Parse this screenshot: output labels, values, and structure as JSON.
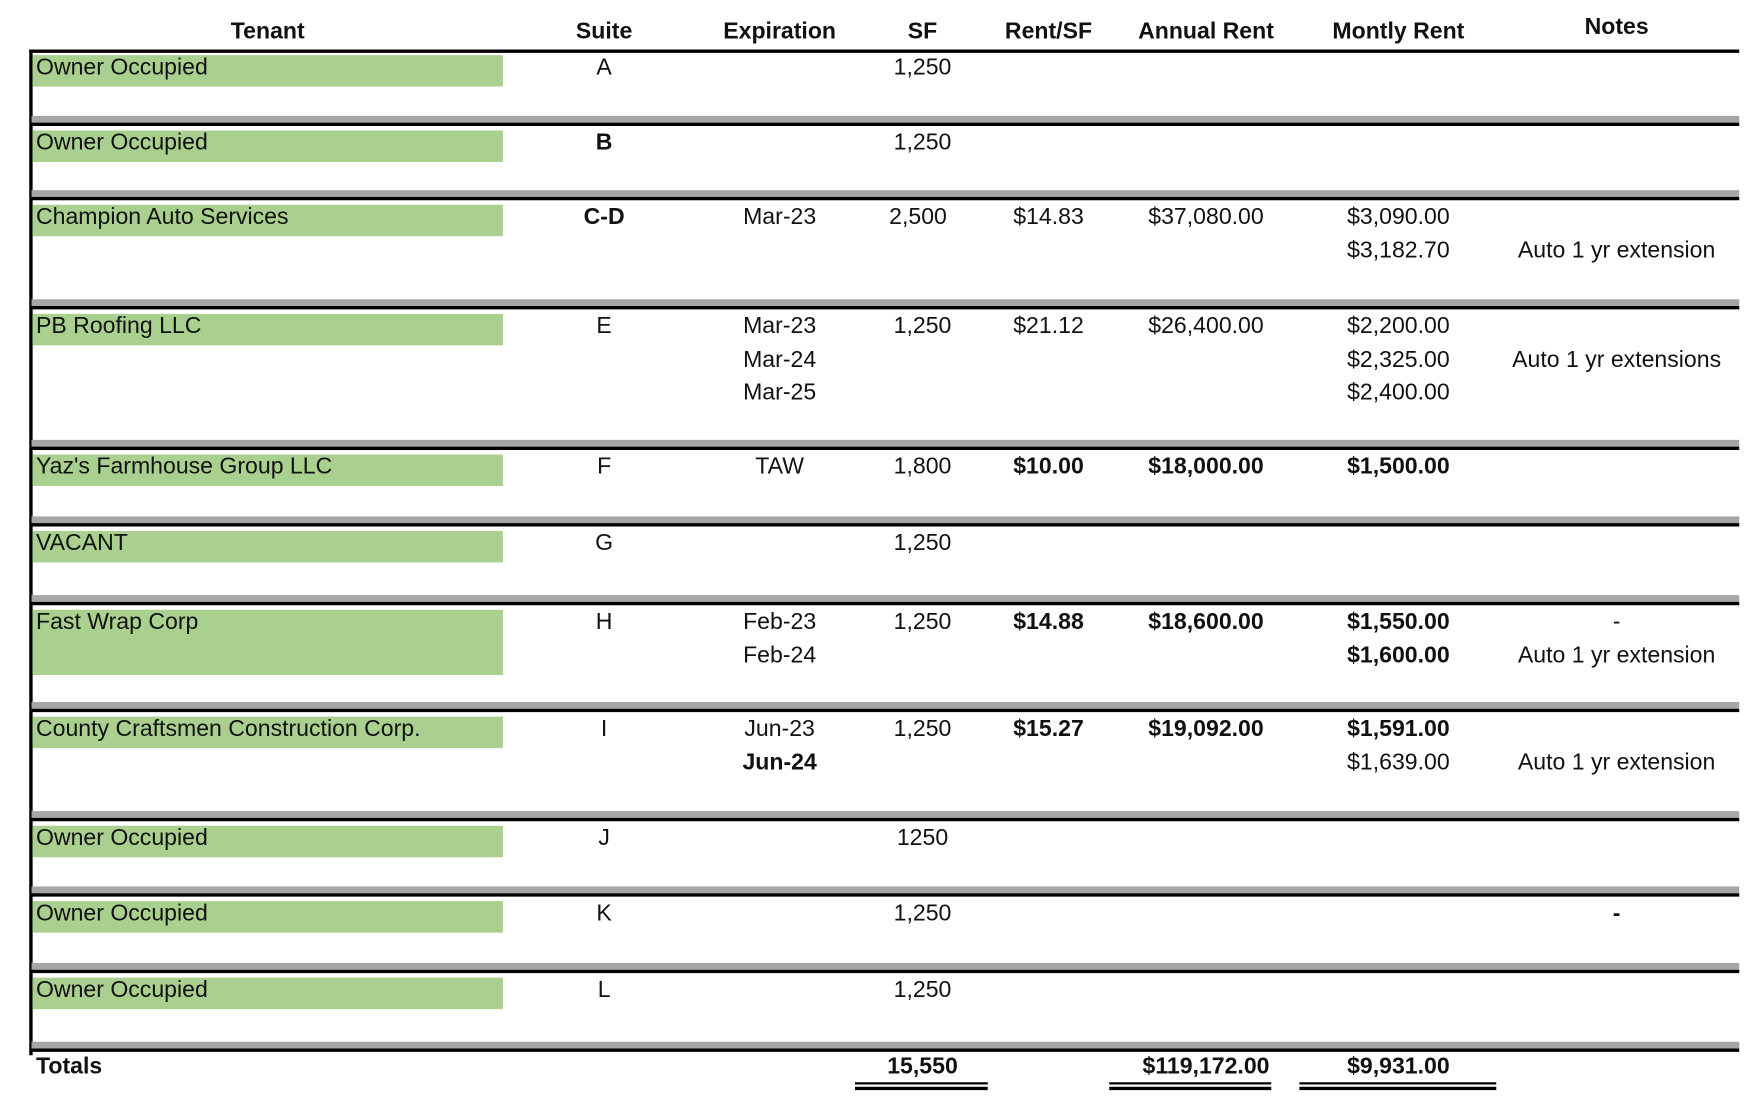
{
  "header": {
    "columns": [
      "Tenant",
      "Suite",
      "Expiration",
      "SF",
      "Rent/SF",
      "Annual Rent",
      "Montly Rent",
      "Notes"
    ]
  },
  "rows": [
    {
      "tenant": "Owner Occupied",
      "suite": "A",
      "sf": "1,250",
      "lines": []
    },
    {
      "tenant": "Owner Occupied",
      "suite": "B",
      "sf": "1,250",
      "lines": []
    },
    {
      "tenant": "Champion Auto Services",
      "suite": "C-D",
      "sf": "2,500",
      "rent_sf": "$14.83",
      "annual_rent": "$37,080.00",
      "lines": [
        {
          "expiration": "Mar-23",
          "monthly_rent": "$3,090.00"
        },
        {
          "monthly_rent": "$3,182.70",
          "notes": "Auto 1 yr extension"
        }
      ]
    },
    {
      "tenant": "PB Roofing LLC",
      "suite": "E",
      "sf": "1,250",
      "rent_sf": "$21.12",
      "annual_rent": "$26,400.00",
      "lines": [
        {
          "expiration": "Mar-23",
          "monthly_rent": "$2,200.00"
        },
        {
          "expiration": "Mar-24",
          "monthly_rent": "$2,325.00",
          "notes": "Auto 1 yr extensions"
        },
        {
          "expiration": "Mar-25",
          "monthly_rent": "$2,400.00"
        }
      ]
    },
    {
      "tenant": "Yaz's Farmhouse Group LLC",
      "suite": "F",
      "sf": "1,800",
      "rent_sf": "$10.00",
      "annual_rent": "$18,000.00",
      "lines": [
        {
          "expiration": "TAW",
          "monthly_rent": "$1,500.00"
        }
      ]
    },
    {
      "tenant": "VACANT",
      "suite": "G",
      "sf": "1,250",
      "lines": []
    },
    {
      "tenant": "Fast Wrap Corp",
      "suite": "H",
      "sf": "1,250",
      "rent_sf": "$14.88",
      "annual_rent": "$18,600.00",
      "lines": [
        {
          "expiration": "Feb-23",
          "monthly_rent": "$1,550.00",
          "notes": "-"
        },
        {
          "expiration": "Feb-24",
          "monthly_rent": "$1,600.00",
          "notes": "Auto 1 yr extension"
        }
      ]
    },
    {
      "tenant": "County Craftsmen Construction Corp.",
      "suite": "I",
      "sf": "1,250",
      "rent_sf": "$15.27",
      "annual_rent": "$19,092.00",
      "lines": [
        {
          "expiration": "Jun-23",
          "monthly_rent": "$1,591.00"
        },
        {
          "expiration": "Jun-24",
          "monthly_rent": "$1,639.00",
          "notes": "Auto 1 yr extension"
        }
      ]
    },
    {
      "tenant": "Owner Occupied",
      "suite": "J",
      "sf": "1250",
      "lines": []
    },
    {
      "tenant": "Owner Occupied",
      "suite": "K",
      "sf": "1,250",
      "lines": [
        {
          "notes": "-"
        }
      ]
    },
    {
      "tenant": "Owner Occupied",
      "suite": "L",
      "sf": "1,250",
      "lines": []
    }
  ],
  "totals": {
    "label": "Totals",
    "sf": "15,550",
    "annual_rent": "$119,172.00",
    "monthly_rent": "$9,931.00"
  }
}
